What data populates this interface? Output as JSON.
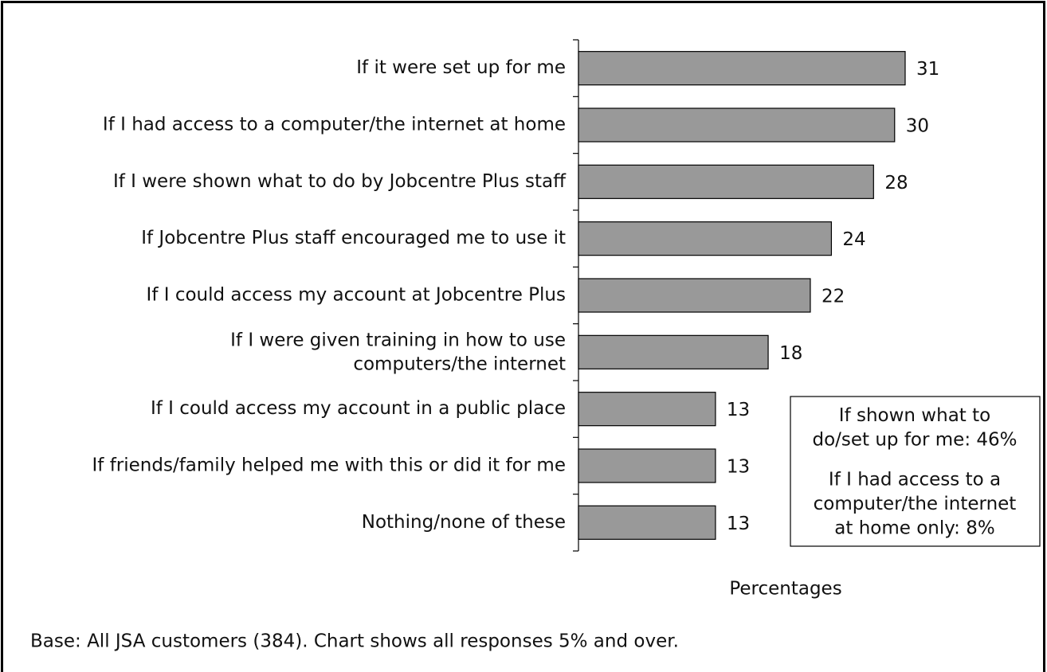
{
  "chart_data": {
    "type": "barh",
    "categories": [
      "If it were set up for me",
      "If I had access to a computer/the internet at home",
      "If I were shown what to do by Jobcentre Plus staff",
      "If Jobcentre Plus staff encouraged me to use it",
      "If I could access my account at Jobcentre Plus",
      "If I were given training in how to use\ncomputers/the internet",
      "If I could access my account in a public place",
      "If friends/family helped me with this or did it for me",
      "Nothing/none of these"
    ],
    "values": [
      31,
      30,
      28,
      24,
      22,
      18,
      13,
      13,
      13
    ],
    "color": "#999999",
    "xlabel": "Percentages",
    "annotations": [
      "If shown what to\ndo/set up for me: 46%",
      "If I had access to a\ncomputer/the internet\nat home only: 8%"
    ],
    "note": "Base: All JSA customers (384). Chart shows all responses 5% and over."
  }
}
